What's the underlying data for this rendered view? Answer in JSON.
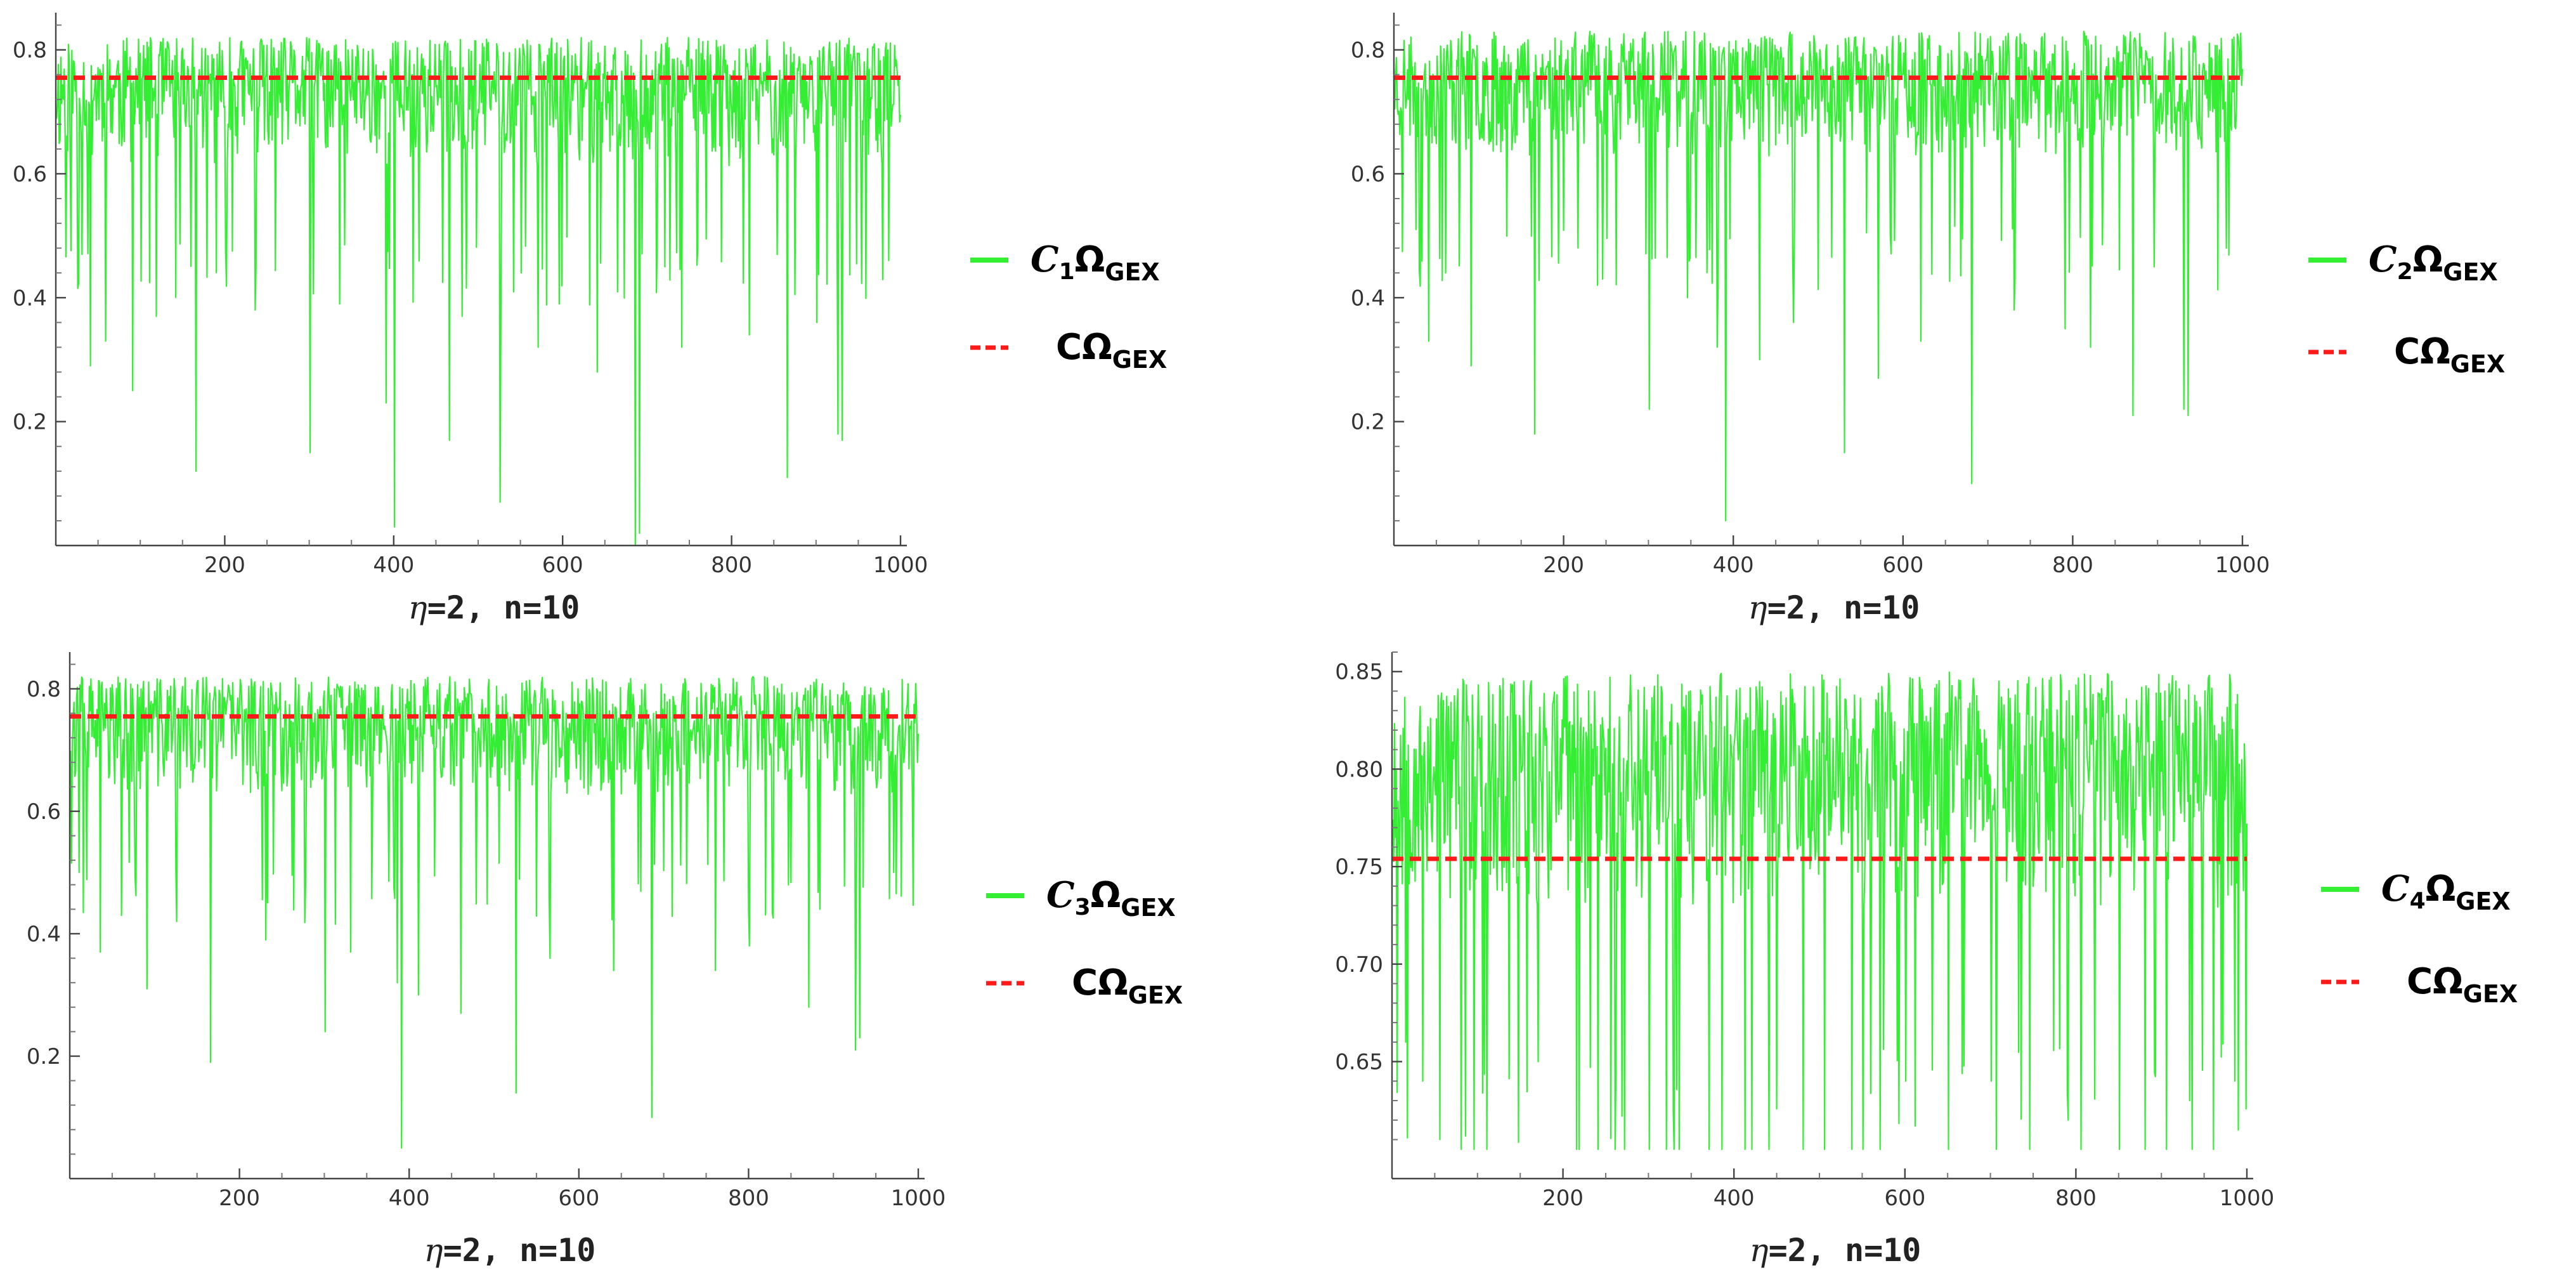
{
  "chart_data": [
    {
      "type": "line",
      "id": "panel-1",
      "xlabel": "η=2, n=10",
      "xlim": [
        0,
        1000
      ],
      "ylim": [
        0,
        0.86
      ],
      "xticks": [
        200,
        400,
        600,
        800,
        1000
      ],
      "yticks": [
        0.2,
        0.4,
        0.6,
        0.8
      ],
      "ytick_labels": [
        "0.2",
        "0.4",
        "0.6",
        "0.8"
      ],
      "legend_placement": "right",
      "series": [
        {
          "name": "C1ΩGEX",
          "name_parts": {
            "letter": "C",
            "sub": "1",
            "omega": "Ω",
            "osub": "GEX"
          },
          "style": "solid",
          "color": "#33ee33",
          "n_points": 1000,
          "typical_range": [
            0.5,
            0.82
          ],
          "seed": 11,
          "dips": [
            [
              30,
              0.47
            ],
            [
              40,
              0.29
            ],
            [
              58,
              0.33
            ],
            [
              90,
              0.25
            ],
            [
              118,
              0.37
            ],
            [
              165,
              0.12
            ],
            [
              235,
              0.38
            ],
            [
              300,
              0.15
            ],
            [
              335,
              0.39
            ],
            [
              390,
              0.23
            ],
            [
              400,
              0.03
            ],
            [
              465,
              0.17
            ],
            [
              480,
              0.37
            ],
            [
              525,
              0.07
            ],
            [
              570,
              0.32
            ],
            [
              595,
              0.39
            ],
            [
              640,
              0.28
            ],
            [
              685,
              0.0
            ],
            [
              690,
              0.02
            ],
            [
              720,
              0.45
            ],
            [
              740,
              0.32
            ],
            [
              820,
              0.34
            ],
            [
              865,
              0.11
            ],
            [
              900,
              0.36
            ],
            [
              925,
              0.18
            ],
            [
              930,
              0.17
            ],
            [
              985,
              0.46
            ]
          ]
        },
        {
          "name": "CΩGEX",
          "name_parts": {
            "letter": "C",
            "sub": "",
            "omega": "Ω",
            "osub": "GEX"
          },
          "style": "dashed",
          "color": "#ff1a1a",
          "value": 0.755
        }
      ]
    },
    {
      "type": "line",
      "id": "panel-2",
      "xlabel": "η=2, n=10",
      "xlim": [
        0,
        1000
      ],
      "ylim": [
        0,
        0.86
      ],
      "xticks": [
        200,
        400,
        600,
        800,
        1000
      ],
      "yticks": [
        0.2,
        0.4,
        0.6,
        0.8
      ],
      "ytick_labels": [
        "0.2",
        "0.4",
        "0.6",
        "0.8"
      ],
      "legend_placement": "right",
      "series": [
        {
          "name": "C2ΩGEX",
          "name_parts": {
            "letter": "C",
            "sub": "2",
            "omega": "Ω",
            "osub": "GEX"
          },
          "style": "solid",
          "color": "#33ee33",
          "n_points": 1000,
          "typical_range": [
            0.52,
            0.83
          ],
          "seed": 23,
          "dips": [
            [
              25,
              0.51
            ],
            [
              40,
              0.33
            ],
            [
              60,
              0.44
            ],
            [
              90,
              0.29
            ],
            [
              165,
              0.18
            ],
            [
              245,
              0.43
            ],
            [
              300,
              0.22
            ],
            [
              345,
              0.4
            ],
            [
              380,
              0.32
            ],
            [
              390,
              0.04
            ],
            [
              430,
              0.3
            ],
            [
              470,
              0.36
            ],
            [
              530,
              0.15
            ],
            [
              570,
              0.27
            ],
            [
              620,
              0.33
            ],
            [
              680,
              0.1
            ],
            [
              730,
              0.38
            ],
            [
              790,
              0.35
            ],
            [
              820,
              0.32
            ],
            [
              870,
              0.21
            ],
            [
              930,
              0.22
            ],
            [
              935,
              0.21
            ],
            [
              980,
              0.48
            ]
          ]
        },
        {
          "name": "CΩGEX",
          "name_parts": {
            "letter": "C",
            "sub": "",
            "omega": "Ω",
            "osub": "GEX"
          },
          "style": "dashed",
          "color": "#ff1a1a",
          "value": 0.755
        }
      ]
    },
    {
      "type": "line",
      "id": "panel-3",
      "xlabel": "η=2, n=10",
      "xlim": [
        0,
        1000
      ],
      "ylim": [
        0,
        0.86
      ],
      "xticks": [
        200,
        400,
        600,
        800,
        1000
      ],
      "yticks": [
        0.2,
        0.4,
        0.6,
        0.8
      ],
      "ytick_labels": [
        "0.2",
        "0.4",
        "0.6",
        "0.8"
      ],
      "legend_placement": "right",
      "series": [
        {
          "name": "C3ΩGEX",
          "name_parts": {
            "letter": "C",
            "sub": "3",
            "omega": "Ω",
            "osub": "GEX"
          },
          "style": "solid",
          "color": "#33ee33",
          "n_points": 1000,
          "typical_range": [
            0.52,
            0.82
          ],
          "seed": 37,
          "dips": [
            [
              10,
              0.5
            ],
            [
              35,
              0.37
            ],
            [
              60,
              0.43
            ],
            [
              90,
              0.31
            ],
            [
              125,
              0.42
            ],
            [
              165,
              0.19
            ],
            [
              230,
              0.39
            ],
            [
              300,
              0.24
            ],
            [
              330,
              0.37
            ],
            [
              385,
              0.32
            ],
            [
              390,
              0.05
            ],
            [
              410,
              0.3
            ],
            [
              460,
              0.27
            ],
            [
              525,
              0.14
            ],
            [
              565,
              0.36
            ],
            [
              640,
              0.34
            ],
            [
              685,
              0.1
            ],
            [
              760,
              0.34
            ],
            [
              800,
              0.38
            ],
            [
              870,
              0.28
            ],
            [
              925,
              0.21
            ],
            [
              930,
              0.23
            ],
            [
              970,
              0.5
            ]
          ]
        },
        {
          "name": "CΩGEX",
          "name_parts": {
            "letter": "C",
            "sub": "",
            "omega": "Ω",
            "osub": "GEX"
          },
          "style": "dashed",
          "color": "#ff1a1a",
          "value": 0.755
        }
      ]
    },
    {
      "type": "line",
      "id": "panel-4",
      "xlabel": "η=2, n=10",
      "xlim": [
        0,
        1000
      ],
      "ylim": [
        0.59,
        0.86
      ],
      "xticks": [
        200,
        400,
        600,
        800,
        1000
      ],
      "yticks": [
        0.65,
        0.7,
        0.75,
        0.8,
        0.85
      ],
      "ytick_labels": [
        "0.65",
        "0.70",
        "0.75",
        "0.80",
        "0.85"
      ],
      "legend_placement": "right",
      "series": [
        {
          "name": "C4ΩGEX",
          "name_parts": {
            "letter": "C",
            "sub": "4",
            "omega": "Ω",
            "osub": "GEX"
          },
          "style": "solid",
          "color": "#33ee33",
          "n_points": 1000,
          "typical_range": [
            0.66,
            0.85
          ],
          "seed": 53,
          "floor": 0.605,
          "dips": [
            [
              15,
              0.66
            ],
            [
              35,
              0.64
            ],
            [
              55,
              0.61
            ],
            [
              80,
              0.605
            ],
            [
              95,
              0.605
            ],
            [
              110,
              0.605
            ],
            [
              170,
              0.65
            ],
            [
              215,
              0.605
            ],
            [
              240,
              0.605
            ],
            [
              260,
              0.605
            ],
            [
              300,
              0.605
            ],
            [
              320,
              0.605
            ],
            [
              335,
              0.605
            ],
            [
              370,
              0.605
            ],
            [
              385,
              0.605
            ],
            [
              420,
              0.605
            ],
            [
              440,
              0.605
            ],
            [
              480,
              0.605
            ],
            [
              505,
              0.605
            ],
            [
              550,
              0.605
            ],
            [
              570,
              0.605
            ],
            [
              600,
              0.64
            ],
            [
              650,
              0.605
            ],
            [
              700,
              0.64
            ],
            [
              745,
              0.605
            ],
            [
              790,
              0.62
            ],
            [
              850,
              0.605
            ],
            [
              880,
              0.605
            ],
            [
              905,
              0.605
            ],
            [
              935,
              0.605
            ],
            [
              960,
              0.605
            ],
            [
              985,
              0.64
            ]
          ]
        },
        {
          "name": "CΩGEX",
          "name_parts": {
            "letter": "C",
            "sub": "",
            "omega": "Ω",
            "osub": "GEX"
          },
          "style": "dashed",
          "color": "#ff1a1a",
          "value": 0.754
        }
      ]
    }
  ]
}
